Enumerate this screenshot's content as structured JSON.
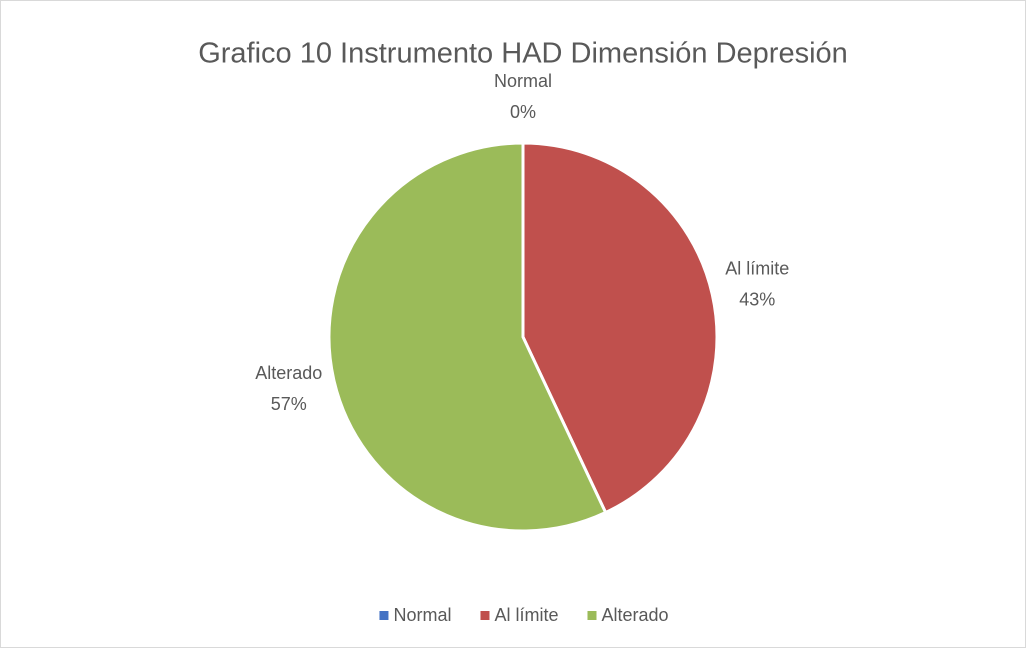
{
  "chart_data": {
    "type": "pie",
    "title": "Grafico 10 Instrumento HAD Dimensión Depresión",
    "categories": [
      "Normal",
      "Al límite",
      "Alterado"
    ],
    "values": [
      0,
      43,
      57
    ],
    "value_labels": [
      "0%",
      "43%",
      "57%"
    ],
    "colors": [
      "#4472c4",
      "#c0504d",
      "#9bbb59"
    ],
    "legend": "bottom"
  }
}
